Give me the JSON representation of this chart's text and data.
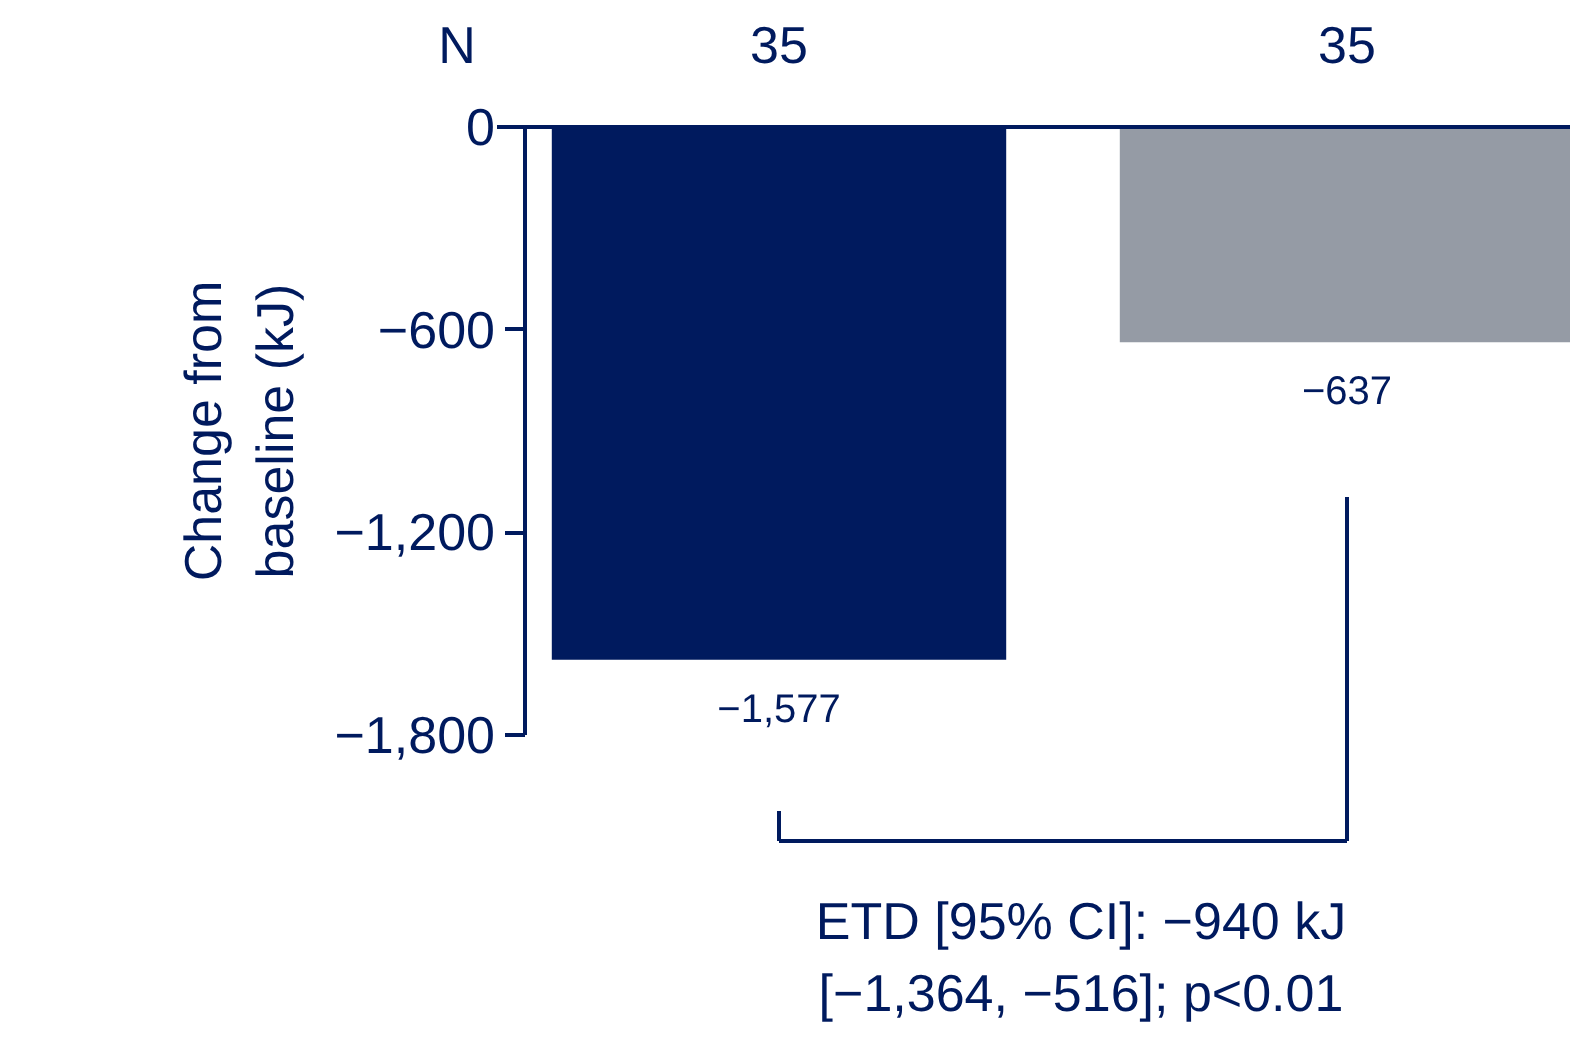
{
  "chart_data": {
    "type": "bar",
    "categories": [
      null,
      null
    ],
    "series": [
      {
        "colors": [
          "#001a5e",
          "#959ba5"
        ],
        "values": [
          -1577,
          -637
        ],
        "value_labels": [
          "−1,577",
          "−637"
        ]
      }
    ],
    "ylabel": "Change from\nbaseline (kJ)",
    "ylim": [
      -1800,
      0
    ],
    "yticks": [
      0,
      {
        "value": -600,
        "label": "−600"
      },
      {
        "value": -1200,
        "label": "−1,200"
      },
      {
        "value": -1800,
        "label": "−1,800"
      }
    ],
    "grid": false,
    "annotations": [
      "N",
      "35",
      "35",
      "ETD [95% CI]: −940 kJ\n[−1,364, −516]; p<0.01"
    ]
  }
}
